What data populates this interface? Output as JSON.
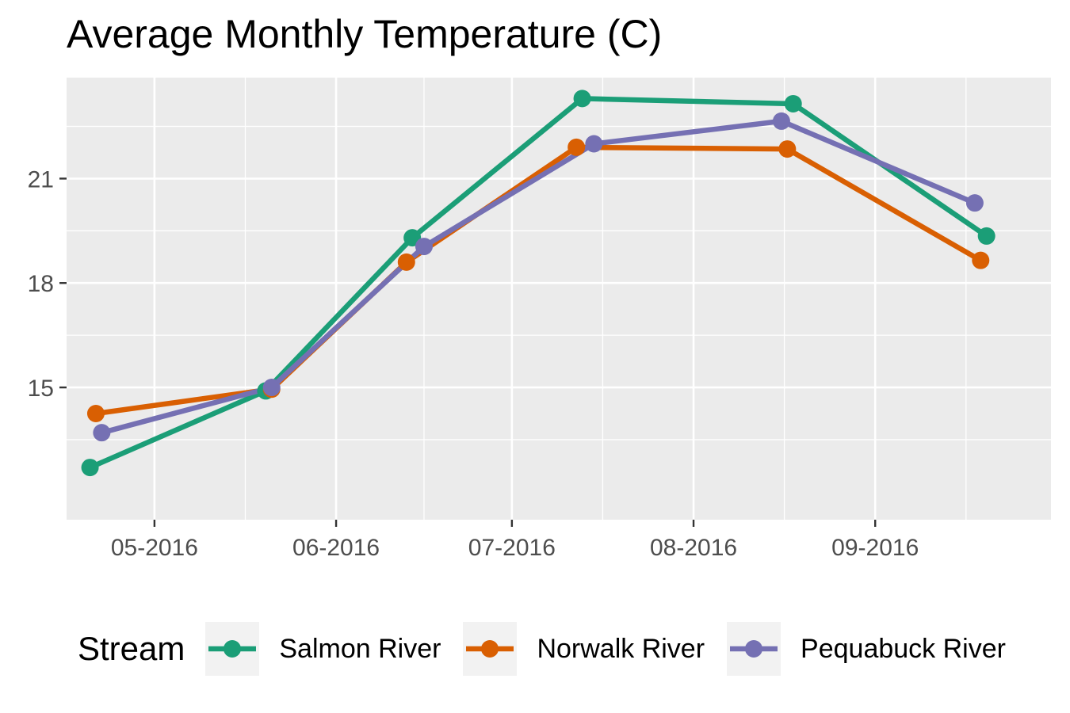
{
  "chart_data": {
    "type": "line",
    "title": "Average Monthly Temperature (C)",
    "xlabel": "",
    "ylabel": "",
    "x_tick_labels": [
      "05-2016",
      "06-2016",
      "07-2016",
      "08-2016",
      "09-2016"
    ],
    "x_tick_dates": [
      "2016-05-01",
      "2016-06-01",
      "2016-07-01",
      "2016-08-01",
      "2016-09-01"
    ],
    "xlim": [
      "2016-04-16",
      "2016-10-01"
    ],
    "y_ticks": [
      15,
      18,
      21
    ],
    "ylim": [
      11.2,
      23.9
    ],
    "grid": true,
    "legend": {
      "title": "Stream",
      "position": "bottom"
    },
    "series": [
      {
        "name": "Salmon River",
        "color": "#1b9e77",
        "x": [
          "2016-04-20",
          "2016-05-20",
          "2016-06-14",
          "2016-07-13",
          "2016-08-18",
          "2016-09-20"
        ],
        "y": [
          12.7,
          14.9,
          19.3,
          23.3,
          23.15,
          19.35
        ]
      },
      {
        "name": "Norwalk River",
        "color": "#d95f02",
        "x": [
          "2016-04-21",
          "2016-05-21",
          "2016-06-13",
          "2016-07-12",
          "2016-08-17",
          "2016-09-19"
        ],
        "y": [
          14.25,
          14.95,
          18.6,
          21.9,
          21.85,
          18.65
        ]
      },
      {
        "name": "Pequabuck River",
        "color": "#7570b3",
        "x": [
          "2016-04-22",
          "2016-05-21",
          "2016-06-16",
          "2016-07-15",
          "2016-08-16",
          "2016-09-18"
        ],
        "y": [
          13.7,
          15.0,
          19.05,
          22.0,
          22.65,
          20.3
        ]
      }
    ]
  }
}
